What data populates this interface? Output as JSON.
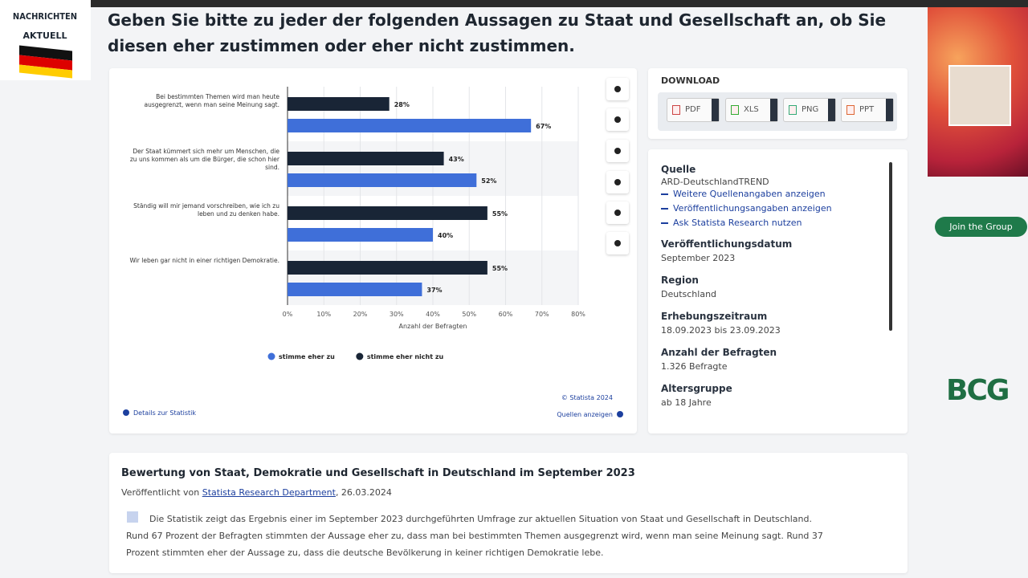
{
  "logo": {
    "line1": "NACHRICHTEN",
    "line2": "AKTUELL"
  },
  "question": "Geben Sie bitte zu jeder der folgenden Aussagen zu Staat und Gesellschaft an, ob Sie diesen eher zustimmen oder eher nicht zustimmen.",
  "chart_data": {
    "type": "hbar",
    "categories": [
      "Bei bestimmten Themen wird man heute ausgegrenzt, wenn man seine Meinung sagt.",
      "Der Staat kümmert sich mehr um Menschen, die zu uns kommen als um die Bürger, die schon hier sind.",
      "Ständig will mir jemand vorschreiben, wie ich zu leben und zu denken habe.",
      "Wir leben gar nicht in einer richtigen Demokratie."
    ],
    "series": [
      {
        "name": "stimme eher zu",
        "color": "#3f6fd9",
        "values": [
          67,
          52,
          40,
          37
        ],
        "value_labels": [
          "67%",
          "52%",
          "40%",
          "37%"
        ]
      },
      {
        "name": "stimme eher nicht zu",
        "color": "#192536",
        "values": [
          28,
          43,
          55,
          55
        ],
        "value_labels": [
          "28%",
          "43%",
          "55%",
          "55%"
        ]
      }
    ],
    "xlabel": "Anzahl der Befragten",
    "xlim": [
      0,
      80
    ],
    "xticks": [
      {
        "value": 0,
        "label": "0%"
      },
      {
        "value": 10,
        "label": "10%"
      },
      {
        "value": 20,
        "label": "20%"
      },
      {
        "value": 30,
        "label": "30%"
      },
      {
        "value": 40,
        "label": "40%"
      },
      {
        "value": 50,
        "label": "50%"
      },
      {
        "value": 60,
        "label": "60%"
      },
      {
        "value": 70,
        "label": "70%"
      },
      {
        "value": 80,
        "label": "80%"
      }
    ],
    "grid": true,
    "legend": "bottom",
    "copyright": "© Statista 2024",
    "details": "Details zur Statistik",
    "sources": "Quellen anzeigen"
  },
  "download": {
    "title": "DOWNLOAD",
    "buttons": [
      "PDF",
      "XLS",
      "PNG",
      "PPT"
    ]
  },
  "info": {
    "source_label": "Quelle",
    "source": "ARD-DeutschlandTREND",
    "links": [
      "Weitere Quellenangaben anzeigen",
      "Veröffentlichungsangaben anzeigen",
      "Ask Statista Research nutzen"
    ],
    "fields": [
      {
        "label": "Veröffentlichungsdatum",
        "value": "September 2023"
      },
      {
        "label": "Region",
        "value": "Deutschland"
      },
      {
        "label": "Erhebungszeitraum",
        "value": "18.09.2023 bis 23.09.2023"
      },
      {
        "label": "Anzahl der Befragten",
        "value": "1.326 Befragte"
      },
      {
        "label": "Altersgruppe",
        "value": "ab 18 Jahre"
      }
    ]
  },
  "ad": {
    "button": "Join the Group",
    "brand": "BCG"
  },
  "description": {
    "title": "Bewertung von Staat, Demokratie und Gesellschaft in Deutschland im September 2023",
    "published_prefix": "Veröffentlicht von",
    "publisher": "Statista Research Department",
    "published_suffix": ", 26.03.2024",
    "text": "Die Statistik zeigt das Ergebnis einer im September 2023 durchgeführten Umfrage zur aktuellen Situation von Staat und Gesellschaft in Deutschland. Rund 67 Prozent der Befragten stimmten der Aussage eher zu, dass man bei bestimmten Themen ausgegrenzt wird, wenn man seine Meinung sagt. Rund 37 Prozent stimmten eher der Aussage zu, dass die deutsche Bevölkerung in keiner richtigen Demokratie lebe."
  }
}
